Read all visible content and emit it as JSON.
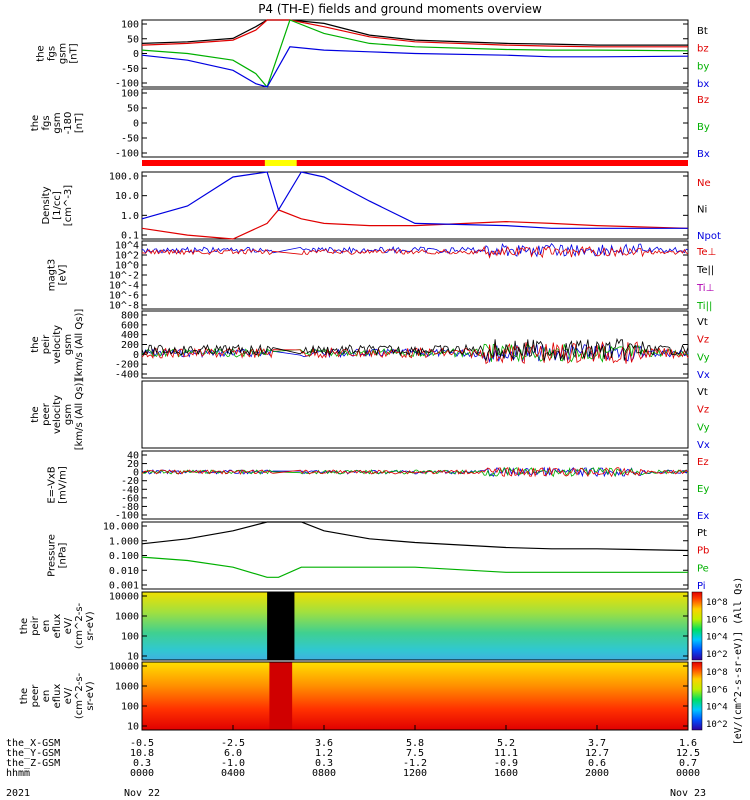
{
  "title": "P4 (TH-E) fields and ground moments overview",
  "panels": [
    {
      "key": "fgs",
      "ylabel": [
        "the",
        "fgs",
        "gsm",
        "[nT]"
      ],
      "ticks": [
        "100",
        "50",
        "0",
        "-50",
        "-100"
      ],
      "legend": [
        {
          "text": "Bt",
          "color": "#000000"
        },
        {
          "text": "bz",
          "color": "#e00000"
        },
        {
          "text": "by",
          "color": "#00b000"
        },
        {
          "text": "bx",
          "color": "#0000e0"
        }
      ]
    },
    {
      "key": "fgs_dlp",
      "ylabel": [
        "the",
        "fgs",
        "gsm",
        "-180",
        "[nT]"
      ],
      "ticks": [
        "100",
        "50",
        "0",
        "-50",
        "-100"
      ],
      "legend": [
        {
          "text": "Bz",
          "color": "#e00000"
        },
        {
          "text": "By",
          "color": "#00b000"
        },
        {
          "text": "Bx",
          "color": "#0000e0"
        }
      ]
    },
    {
      "key": "density",
      "ylabel": [
        "Density",
        "[1/cc]",
        "[cm^-3]"
      ],
      "ticks": [
        "100.0",
        "10.0",
        "1.0",
        "0.1"
      ],
      "legend": [
        {
          "text": "Ne",
          "color": "#e00000"
        },
        {
          "text": "Ni",
          "color": "#000000"
        },
        {
          "text": "Npot",
          "color": "#0000e0"
        }
      ]
    },
    {
      "key": "temperature",
      "ylabel": [
        "magt3",
        "[eV]"
      ],
      "ticks": [
        "10^4",
        "10^2",
        "10^0",
        "10^-2",
        "10^-4",
        "10^-6",
        "10^-8"
      ],
      "legend": [
        {
          "text": "Te⊥",
          "color": "#e00000"
        },
        {
          "text": "Te||",
          "color": "#000000"
        },
        {
          "text": "Ti⊥",
          "color": "#b000b0"
        },
        {
          "text": "Ti||",
          "color": "#00b000"
        }
      ]
    },
    {
      "key": "peir_velocity",
      "ylabel": [
        "the",
        "peir",
        "velocity",
        "gsm",
        "[km/s (All Qs)]"
      ],
      "ticks": [
        "800",
        "600",
        "400",
        "200",
        "0",
        "-200",
        "-400"
      ],
      "legend": [
        {
          "text": "Vt",
          "color": "#000000"
        },
        {
          "text": "Vz",
          "color": "#e00000"
        },
        {
          "text": "Vy",
          "color": "#00b000"
        },
        {
          "text": "Vx",
          "color": "#0000e0"
        }
      ]
    },
    {
      "key": "peer_velocity",
      "ylabel": [
        "the",
        "peer",
        "velocity",
        "gsm",
        "[km/s (All Qs)]"
      ],
      "ticks": [],
      "legend": [
        {
          "text": "Vt",
          "color": "#000000"
        },
        {
          "text": "Vz",
          "color": "#e00000"
        },
        {
          "text": "Vy",
          "color": "#00b000"
        },
        {
          "text": "Vx",
          "color": "#0000e0"
        }
      ]
    },
    {
      "key": "efield",
      "ylabel": [
        "E=-VxB",
        "[mV/m]"
      ],
      "ticks": [
        "40",
        "20",
        "0",
        "-20",
        "-40",
        "-60",
        "-80",
        "-100"
      ],
      "legend": [
        {
          "text": "Ez",
          "color": "#e00000"
        },
        {
          "text": "Ey",
          "color": "#00b000"
        },
        {
          "text": "Ex",
          "color": "#0000e0"
        }
      ]
    },
    {
      "key": "pressure",
      "ylabel": [
        "Pressure",
        "[nPa]"
      ],
      "ticks": [
        "10.000",
        "1.000",
        "0.100",
        "0.010",
        "0.001"
      ],
      "legend": [
        {
          "text": "Pt",
          "color": "#000000"
        },
        {
          "text": "Pb",
          "color": "#e00000"
        },
        {
          "text": "Pe",
          "color": "#00b000"
        },
        {
          "text": "Pi",
          "color": "#0000e0"
        }
      ]
    },
    {
      "key": "peir_eflux",
      "ylabel": [
        "the",
        "peir",
        "en",
        "eflux",
        "eV/",
        "(cm^2-s-",
        "sr-eV)"
      ],
      "ticks": [
        "10000",
        "1000",
        "100",
        "10"
      ],
      "legend": []
    },
    {
      "key": "peer_eflux",
      "ylabel": [
        "the",
        "peer",
        "en",
        "eflux",
        "eV/",
        "(cm^2-s-",
        "sr-eV)"
      ],
      "ticks": [
        "10000",
        "1000",
        "100",
        "10"
      ],
      "legend": []
    }
  ],
  "colorbar": {
    "label": "[eV/(cm^2-s-sr-eV)] (All Qs)",
    "upper_ticks": [
      "10^8",
      "10^6",
      "10^4",
      "10^2"
    ],
    "lower_ticks": [
      "10^8",
      "10^6",
      "10^4",
      "10^2"
    ]
  },
  "time_axis": {
    "rows": [
      {
        "name": "the_X-GSM",
        "values": [
          "-0.5",
          "-2.5",
          "3.6",
          "5.8",
          "5.2",
          "3.7",
          "1.6"
        ]
      },
      {
        "name": "the_Y-GSM",
        "values": [
          "10.8",
          "6.0",
          "1.2",
          "7.5",
          "11.1",
          "12.7",
          "12.5"
        ]
      },
      {
        "name": "the_Z-GSM",
        "values": [
          "0.3",
          "-1.0",
          "0.3",
          "-1.2",
          "-0.9",
          "0.6",
          "0.7"
        ]
      },
      {
        "name": "hhmm",
        "values": [
          "0000",
          "0400",
          "0800",
          "1200",
          "1600",
          "2000",
          "0000"
        ]
      }
    ],
    "year": "2021",
    "start_date": "Nov 22",
    "end_date": "Nov 23"
  },
  "chart_data": {
    "type": "line",
    "title": "P4 (TH-E) fields and ground moments overview",
    "x_ticks": [
      "0000",
      "0400",
      "0800",
      "1200",
      "1600",
      "2000",
      "0000"
    ],
    "series": [
      {
        "name": "Bt",
        "panel": "fgs",
        "x_hours": [
          0,
          2,
          4,
          5,
          5.5,
          6.5,
          8,
          10,
          12,
          16,
          18,
          20,
          24
        ],
        "values": [
          30,
          35,
          45,
          80,
          100,
          100,
          90,
          55,
          40,
          30,
          28,
          25,
          25
        ]
      },
      {
        "name": "bz",
        "panel": "fgs",
        "x_hours": [
          0,
          2,
          4,
          5,
          5.5,
          6.5,
          8,
          10,
          12,
          16,
          18,
          20,
          24
        ],
        "values": [
          25,
          30,
          40,
          70,
          100,
          100,
          80,
          50,
          35,
          25,
          22,
          20,
          20
        ]
      },
      {
        "name": "by",
        "panel": "fgs",
        "x_hours": [
          0,
          2,
          4,
          5,
          5.5,
          6.5,
          8,
          10,
          12,
          16,
          18,
          20,
          24
        ],
        "values": [
          10,
          0,
          -20,
          -60,
          -100,
          100,
          60,
          30,
          20,
          12,
          10,
          10,
          8
        ]
      },
      {
        "name": "bx",
        "panel": "fgs",
        "x_hours": [
          0,
          2,
          4,
          5,
          5.5,
          6.5,
          8,
          10,
          12,
          16,
          18,
          20,
          24
        ],
        "values": [
          -5,
          -20,
          -50,
          -90,
          -100,
          20,
          10,
          5,
          0,
          -5,
          -10,
          -10,
          -8
        ]
      },
      {
        "name": "Ne",
        "panel": "density",
        "x_hours": [
          0,
          2,
          4,
          5.5,
          6,
          7,
          8,
          10,
          12,
          16,
          18,
          20,
          24
        ],
        "values": [
          0.3,
          0.15,
          0.1,
          0.5,
          2,
          0.8,
          0.5,
          0.4,
          0.4,
          0.6,
          0.5,
          0.4,
          0.3
        ]
      },
      {
        "name": "Npot",
        "panel": "density",
        "x_hours": [
          0,
          2,
          4,
          5.5,
          6,
          7,
          8,
          10,
          12,
          16,
          18,
          20,
          24
        ],
        "values": [
          0.8,
          3,
          60,
          100,
          2,
          100,
          60,
          5,
          0.5,
          0.4,
          0.3,
          0.3,
          0.3
        ]
      },
      {
        "name": "Pt",
        "panel": "pressure",
        "x_hours": [
          0,
          2,
          4,
          5.5,
          6,
          7,
          8,
          10,
          12,
          16,
          18,
          20,
          24
        ],
        "values": [
          0.5,
          1,
          3,
          10,
          10,
          10,
          3,
          1,
          0.6,
          0.3,
          0.25,
          0.25,
          0.2
        ]
      },
      {
        "name": "Pe",
        "panel": "pressure",
        "x_hours": [
          0,
          2,
          4,
          5.5,
          6,
          7,
          8,
          10,
          12,
          16,
          18,
          20,
          24
        ],
        "values": [
          0.08,
          0.05,
          0.02,
          0.005,
          0.005,
          0.02,
          0.02,
          0.02,
          0.02,
          0.01,
          0.01,
          0.01,
          0.01
        ]
      }
    ],
    "xlabel": "hhmm",
    "ylim_fgs": [
      -100,
      100
    ]
  }
}
